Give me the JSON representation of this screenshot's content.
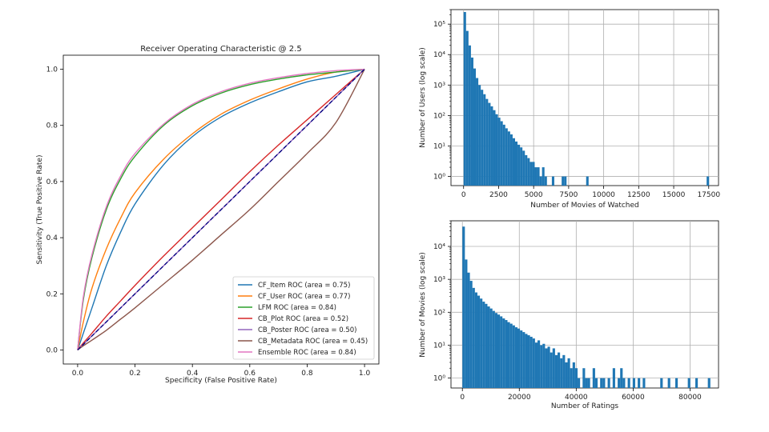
{
  "chart_data": [
    {
      "type": "line",
      "title": "Receiver Operating Characteristic @ 2.5",
      "xlabel": "Specificity (False Positive Rate)",
      "ylabel": "Sensitivity (True Positive Rate)",
      "xlim": [
        -0.05,
        1.05
      ],
      "ylim": [
        -0.05,
        1.05
      ],
      "xticks": [
        "0.0",
        "0.2",
        "0.4",
        "0.6",
        "0.8",
        "1.0"
      ],
      "yticks": [
        "0.0",
        "0.2",
        "0.4",
        "0.6",
        "0.8",
        "1.0"
      ],
      "grid": false,
      "legend_position": "lower-right",
      "x": [
        0,
        0.02,
        0.05,
        0.1,
        0.15,
        0.2,
        0.3,
        0.4,
        0.5,
        0.6,
        0.7,
        0.8,
        0.9,
        1.0
      ],
      "series": [
        {
          "name": "CF_Item ROC (area = 0.75)",
          "color": "#1f77b4",
          "values": [
            0,
            0.06,
            0.15,
            0.3,
            0.42,
            0.52,
            0.66,
            0.76,
            0.83,
            0.88,
            0.92,
            0.955,
            0.975,
            1.0
          ]
        },
        {
          "name": "CF_User ROC (area = 0.77)",
          "color": "#ff7f0e",
          "values": [
            0,
            0.1,
            0.22,
            0.36,
            0.47,
            0.56,
            0.68,
            0.77,
            0.84,
            0.89,
            0.93,
            0.965,
            0.99,
            1.0
          ]
        },
        {
          "name": "LFM ROC (area = 0.84)",
          "color": "#2ca02c",
          "values": [
            0,
            0.18,
            0.33,
            0.5,
            0.61,
            0.69,
            0.8,
            0.87,
            0.915,
            0.945,
            0.965,
            0.98,
            0.99,
            1.0
          ]
        },
        {
          "name": "CB_Plot ROC (area = 0.52)",
          "color": "#d62728",
          "values": [
            0,
            0.025,
            0.06,
            0.12,
            0.175,
            0.23,
            0.335,
            0.435,
            0.535,
            0.635,
            0.73,
            0.82,
            0.91,
            1.0
          ]
        },
        {
          "name": "CB_Poster ROC (area = 0.50)",
          "color": "#9467bd",
          "values": [
            0,
            0.02,
            0.05,
            0.1,
            0.15,
            0.2,
            0.3,
            0.4,
            0.5,
            0.6,
            0.7,
            0.8,
            0.9,
            1.0
          ]
        },
        {
          "name": "CB_Metadata ROC (area = 0.45)",
          "color": "#8c564b",
          "values": [
            0,
            0.015,
            0.035,
            0.07,
            0.11,
            0.15,
            0.235,
            0.32,
            0.41,
            0.5,
            0.6,
            0.7,
            0.81,
            1.0
          ]
        },
        {
          "name": "Ensemble ROC (area = 0.84)",
          "color": "#e377c2",
          "values": [
            0,
            0.19,
            0.34,
            0.51,
            0.62,
            0.7,
            0.805,
            0.875,
            0.92,
            0.95,
            0.97,
            0.985,
            0.995,
            1.0
          ]
        }
      ],
      "reference_line": {
        "color": "#000080",
        "dash": "dashed",
        "x": [
          0,
          1
        ],
        "y": [
          0,
          1
        ]
      }
    },
    {
      "type": "bar",
      "title": "",
      "xlabel": "Number of Movies of Watched",
      "ylabel": "Number of Users (log scale)",
      "y_scale": "log",
      "xlim": [
        -900,
        18200
      ],
      "ylim": [
        0.5,
        300000
      ],
      "xticks": [
        "0",
        "2500",
        "5000",
        "7500",
        "10000",
        "12500",
        "15000",
        "17500"
      ],
      "yticks": [
        "10⁰",
        "10¹",
        "10²",
        "10³",
        "10⁴",
        "10⁵"
      ],
      "grid": true,
      "bar_color": "#1f77b4",
      "bin_width": 175,
      "bins": [
        [
          0,
          250000
        ],
        [
          175,
          60000
        ],
        [
          350,
          20000
        ],
        [
          525,
          8000
        ],
        [
          700,
          3500
        ],
        [
          875,
          1700
        ],
        [
          1050,
          1000
        ],
        [
          1225,
          700
        ],
        [
          1400,
          500
        ],
        [
          1575,
          350
        ],
        [
          1750,
          260
        ],
        [
          1925,
          200
        ],
        [
          2100,
          150
        ],
        [
          2275,
          110
        ],
        [
          2450,
          85
        ],
        [
          2625,
          65
        ],
        [
          2800,
          50
        ],
        [
          2975,
          38
        ],
        [
          3150,
          30
        ],
        [
          3325,
          24
        ],
        [
          3500,
          18
        ],
        [
          3675,
          14
        ],
        [
          3850,
          11
        ],
        [
          4025,
          9
        ],
        [
          4200,
          7
        ],
        [
          4375,
          5
        ],
        [
          4550,
          4
        ],
        [
          4725,
          3
        ],
        [
          4900,
          3
        ],
        [
          5075,
          2
        ],
        [
          5250,
          2
        ],
        [
          5425,
          1
        ],
        [
          5600,
          2
        ],
        [
          5775,
          1
        ],
        [
          6300,
          1
        ],
        [
          7000,
          1
        ],
        [
          7175,
          1
        ],
        [
          8750,
          1
        ],
        [
          17350,
          1
        ]
      ]
    },
    {
      "type": "bar",
      "title": "",
      "xlabel": "Number of Ratings",
      "ylabel": "Number of Movies (log scale)",
      "y_scale": "log",
      "xlim": [
        -4000,
        90000
      ],
      "ylim": [
        0.5,
        60000
      ],
      "xticks": [
        "0",
        "20000",
        "40000",
        "60000",
        "80000"
      ],
      "yticks": [
        "10⁰",
        "10¹",
        "10²",
        "10³",
        "10⁴"
      ],
      "grid": true,
      "bar_color": "#1f77b4",
      "bin_width": 880,
      "bins": [
        [
          0,
          40000
        ],
        [
          880,
          4000
        ],
        [
          1760,
          1600
        ],
        [
          2640,
          900
        ],
        [
          3520,
          550
        ],
        [
          4400,
          400
        ],
        [
          5280,
          320
        ],
        [
          6160,
          260
        ],
        [
          7040,
          210
        ],
        [
          7920,
          180
        ],
        [
          8800,
          150
        ],
        [
          9680,
          130
        ],
        [
          10560,
          110
        ],
        [
          11440,
          95
        ],
        [
          12320,
          85
        ],
        [
          13200,
          75
        ],
        [
          14080,
          65
        ],
        [
          14960,
          58
        ],
        [
          15840,
          50
        ],
        [
          16720,
          45
        ],
        [
          17600,
          40
        ],
        [
          18480,
          35
        ],
        [
          19360,
          32
        ],
        [
          20240,
          28
        ],
        [
          21120,
          25
        ],
        [
          22000,
          22
        ],
        [
          22880,
          20
        ],
        [
          23760,
          18
        ],
        [
          24640,
          16
        ],
        [
          25520,
          12
        ],
        [
          26400,
          14
        ],
        [
          27280,
          10
        ],
        [
          28160,
          11
        ],
        [
          29040,
          8
        ],
        [
          29920,
          9
        ],
        [
          30800,
          6
        ],
        [
          31680,
          8
        ],
        [
          32560,
          5
        ],
        [
          33440,
          6
        ],
        [
          34320,
          4
        ],
        [
          35200,
          5
        ],
        [
          36080,
          3
        ],
        [
          36960,
          4
        ],
        [
          37840,
          2
        ],
        [
          38720,
          3
        ],
        [
          39600,
          2
        ],
        [
          40480,
          1
        ],
        [
          42240,
          2
        ],
        [
          43120,
          1
        ],
        [
          44000,
          1
        ],
        [
          45760,
          2
        ],
        [
          46640,
          1
        ],
        [
          48400,
          1
        ],
        [
          49280,
          1
        ],
        [
          51040,
          1
        ],
        [
          52800,
          2
        ],
        [
          54560,
          1
        ],
        [
          55440,
          2
        ],
        [
          56320,
          1
        ],
        [
          58080,
          1
        ],
        [
          59840,
          1
        ],
        [
          61600,
          1
        ],
        [
          63360,
          1
        ],
        [
          69520,
          1
        ],
        [
          72160,
          1
        ],
        [
          74800,
          1
        ],
        [
          79200,
          1
        ],
        [
          81840,
          1
        ],
        [
          86240,
          1
        ]
      ]
    }
  ]
}
